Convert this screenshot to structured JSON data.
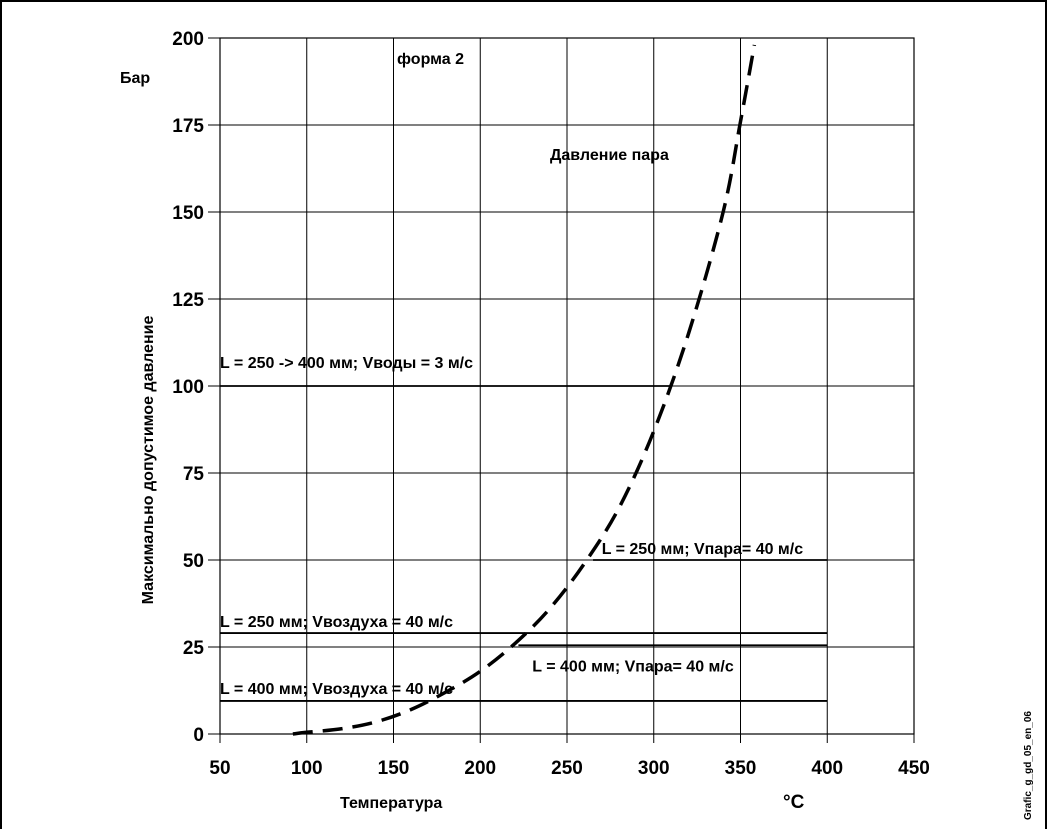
{
  "chart_data": {
    "type": "line",
    "xlabel": "Температура",
    "xunit": "°C",
    "ylabel": "Максимально допустимое давление",
    "yunit": "Бар",
    "xlim": [
      50,
      450
    ],
    "ylim": [
      0,
      200
    ],
    "xticks": [
      50,
      100,
      150,
      200,
      250,
      300,
      350,
      400,
      450
    ],
    "yticks": [
      0,
      25,
      50,
      75,
      100,
      125,
      150,
      175,
      200
    ],
    "grid": true,
    "annotation": "форма 2",
    "side_label": "Grafic_g_gd_05_en_06",
    "curve": {
      "name": "Давление пара",
      "style": "dashed",
      "x": [
        92,
        100,
        120,
        140,
        160,
        180,
        200,
        220,
        240,
        260,
        280,
        300,
        320,
        340,
        350,
        358
      ],
      "y": [
        0,
        0.5,
        1.5,
        3.5,
        7,
        12,
        18,
        26,
        36,
        49,
        65,
        87,
        115,
        150,
        176,
        198
      ]
    },
    "limits": [
      {
        "label": "L = 250 -> 400 мм;   Vводы = 3 м/с",
        "y": 100,
        "x_start": 50,
        "x_end": 310
      },
      {
        "label": "L = 250 мм; Vпара= 40 м/с",
        "y": 50,
        "x_start": 265,
        "x_end": 400
      },
      {
        "label": "L = 250 мм; Vвоздуха = 40 м/с",
        "y": 29,
        "x_start": 50,
        "x_end": 400
      },
      {
        "label": "L = 400 мм; Vпара= 40 м/с",
        "y": 25.5,
        "x_start": 222,
        "x_end": 400
      },
      {
        "label": "L = 400 мм; Vвоздуха = 40 м/с",
        "y": 9.5,
        "x_start": 50,
        "x_end": 400
      }
    ]
  }
}
